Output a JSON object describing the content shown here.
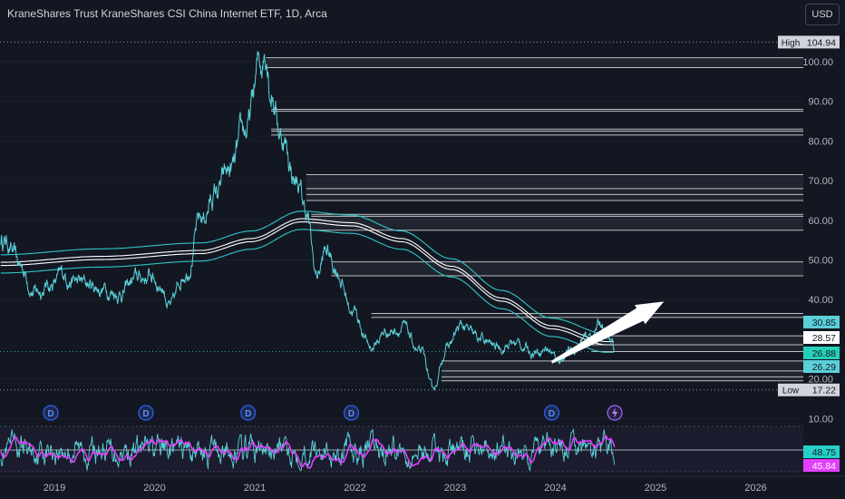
{
  "title": "KraneShares Trust KraneShares CSI China Internet ETF, 1D, Arca",
  "currency_button": "USD",
  "colors": {
    "background": "#131722",
    "price_line": "#5ad0d8",
    "level_line": "#d8d8d8",
    "rsi_line": "#e040fb",
    "axis_text": "#b2b5be",
    "cyan_band": "#2ec7c9"
  },
  "chart_data": [
    {
      "type": "line",
      "title": "KraneShares Trust KraneShares CSI China Internet ETF, 1D, Arca",
      "ylim": [
        7,
        107
      ],
      "yticks": [
        100,
        90,
        80,
        70,
        60,
        50,
        40,
        20,
        10
      ],
      "ytick_labels": [
        "100.00",
        "90.00",
        "80.00",
        "70.00",
        "60.00",
        "50.00",
        "40.00",
        "20.00",
        "10.00"
      ],
      "xticks": [
        2019,
        2020,
        2021,
        2022,
        2023,
        2024,
        2025,
        2026
      ],
      "high": {
        "label": "High",
        "value": "104.94"
      },
      "low": {
        "label": "Low",
        "value": "17.22"
      },
      "price_labels": [
        "30.85",
        "28.57",
        "26.88",
        "26.29"
      ],
      "price_anchor": [
        [
          2018.55,
          55
        ],
        [
          2018.7,
          48
        ],
        [
          2018.85,
          42
        ],
        [
          2019.0,
          44
        ],
        [
          2019.15,
          46
        ],
        [
          2019.3,
          44
        ],
        [
          2019.5,
          43
        ],
        [
          2019.7,
          42
        ],
        [
          2019.85,
          45
        ],
        [
          2020.0,
          46
        ],
        [
          2020.1,
          44
        ],
        [
          2020.2,
          38
        ],
        [
          2020.35,
          48
        ],
        [
          2020.5,
          60
        ],
        [
          2020.65,
          67
        ],
        [
          2020.8,
          72
        ],
        [
          2020.95,
          82
        ],
        [
          2021.1,
          100
        ],
        [
          2021.15,
          104.9
        ],
        [
          2021.2,
          95
        ],
        [
          2021.3,
          82
        ],
        [
          2021.45,
          70
        ],
        [
          2021.55,
          62
        ],
        [
          2021.65,
          46
        ],
        [
          2021.75,
          52
        ],
        [
          2021.85,
          48
        ],
        [
          2022.0,
          38
        ],
        [
          2022.2,
          28
        ],
        [
          2022.35,
          32
        ],
        [
          2022.5,
          33
        ],
        [
          2022.7,
          26
        ],
        [
          2022.82,
          17.3
        ],
        [
          2022.95,
          28
        ],
        [
          2023.1,
          33
        ],
        [
          2023.25,
          30
        ],
        [
          2023.45,
          28
        ],
        [
          2023.65,
          29
        ],
        [
          2023.8,
          27
        ],
        [
          2023.95,
          28
        ],
        [
          2024.05,
          25
        ],
        [
          2024.2,
          27
        ],
        [
          2024.35,
          30
        ],
        [
          2024.5,
          34
        ],
        [
          2024.55,
          30
        ],
        [
          2024.63,
          27.5
        ]
      ],
      "ma_anchor": [
        [
          2018.5,
          49
        ],
        [
          2019.5,
          50.5
        ],
        [
          2020.5,
          52
        ],
        [
          2021.0,
          55
        ],
        [
          2021.5,
          60
        ],
        [
          2022.0,
          59
        ],
        [
          2022.5,
          55
        ],
        [
          2023.0,
          48
        ],
        [
          2023.5,
          40
        ],
        [
          2024.0,
          33
        ],
        [
          2024.55,
          29
        ]
      ],
      "support_resistance_levels": [
        {
          "from": 2021.15,
          "to": 2024.6,
          "lines": [
            101,
            98.5
          ]
        },
        {
          "from": 2021.2,
          "to": 2024.6,
          "lines": [
            88,
            87.5
          ]
        },
        {
          "from": 2021.2,
          "to": 2024.6,
          "lines": [
            83,
            82.5,
            81.5
          ]
        },
        {
          "from": 2021.55,
          "to": 2024.6,
          "lines": [
            71.5,
            68,
            66.5,
            65
          ]
        },
        {
          "from": 2021.6,
          "to": 2024.6,
          "lines": [
            61.5,
            61,
            57.5
          ]
        },
        {
          "from": 2021.8,
          "to": 2024.6,
          "lines": [
            49.5,
            46
          ]
        },
        {
          "from": 2022.2,
          "to": 2024.6,
          "lines": [
            36.5,
            35.5
          ]
        },
        {
          "from": 2024.4,
          "to": 2024.6,
          "lines": [
            30.85,
            28.6,
            26.9
          ]
        },
        {
          "from": 2022.9,
          "to": 2024.6,
          "lines": [
            24.5,
            22,
            20.5,
            19.5
          ]
        }
      ],
      "dividend_markers": [
        2019.0,
        2019.95,
        2020.97,
        2022.0,
        2024.0
      ],
      "flash_marker": 2024.63,
      "arrow": {
        "from": [
          2024.0,
          24.2
        ],
        "to": [
          2025.12,
          39.5
        ]
      }
    },
    {
      "type": "line",
      "title": "",
      "ylim": [
        0,
        100
      ],
      "rsi_labels": [
        "48.75",
        "45.84"
      ]
    }
  ]
}
